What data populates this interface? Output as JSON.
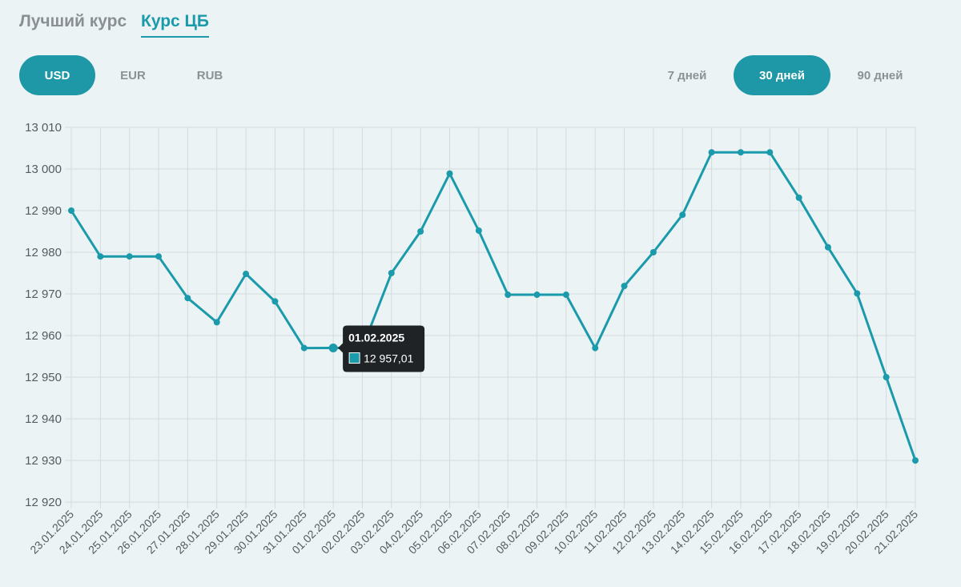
{
  "tabs": {
    "best_rate": "Лучший курс",
    "cb_rate": "Курс ЦБ"
  },
  "currencies": [
    "USD",
    "EUR",
    "RUB"
  ],
  "periods": [
    "7 дней",
    "30 дней",
    "90 дней"
  ],
  "colors": {
    "accent": "#1e98a6",
    "line": "#1a9aaa",
    "grid": "#d3dbde",
    "tooltip_bg": "#1f2325"
  },
  "tooltip": {
    "date": "01.02.2025",
    "value": "12 957,01"
  },
  "chart_data": {
    "type": "line",
    "title": "",
    "xlabel": "",
    "ylabel": "",
    "ylim": [
      12920,
      13010
    ],
    "yticks": [
      "12 920",
      "12 930",
      "12 940",
      "12 950",
      "12 960",
      "12 970",
      "12 980",
      "12 990",
      "13 000",
      "13 010"
    ],
    "grid": true,
    "categories": [
      "23.01.2025",
      "24.01.2025",
      "25.01.2025",
      "26.01.2025",
      "27.01.2025",
      "28.01.2025",
      "29.01.2025",
      "30.01.2025",
      "31.01.2025",
      "01.02.2025",
      "02.02.2025",
      "03.02.2025",
      "04.02.2025",
      "05.02.2025",
      "06.02.2025",
      "07.02.2025",
      "08.02.2025",
      "09.02.2025",
      "10.02.2025",
      "11.02.2025",
      "12.02.2025",
      "13.02.2025",
      "14.02.2025",
      "15.02.2025",
      "16.02.2025",
      "17.02.2025",
      "18.02.2025",
      "19.02.2025",
      "20.02.2025",
      "21.02.2025"
    ],
    "series": [
      {
        "values": [
          12990,
          12979,
          12979,
          12979,
          12969,
          12963.2,
          12974.8,
          12968.2,
          12957,
          12957.01,
          12957,
          12975,
          12985,
          12998.9,
          12985.2,
          12969.8,
          12969.8,
          12969.8,
          12957,
          12971.9,
          12980,
          12989,
          13004,
          13004,
          13004,
          12993.1,
          12981.2,
          12970.1,
          12950,
          12930
        ]
      }
    ]
  }
}
